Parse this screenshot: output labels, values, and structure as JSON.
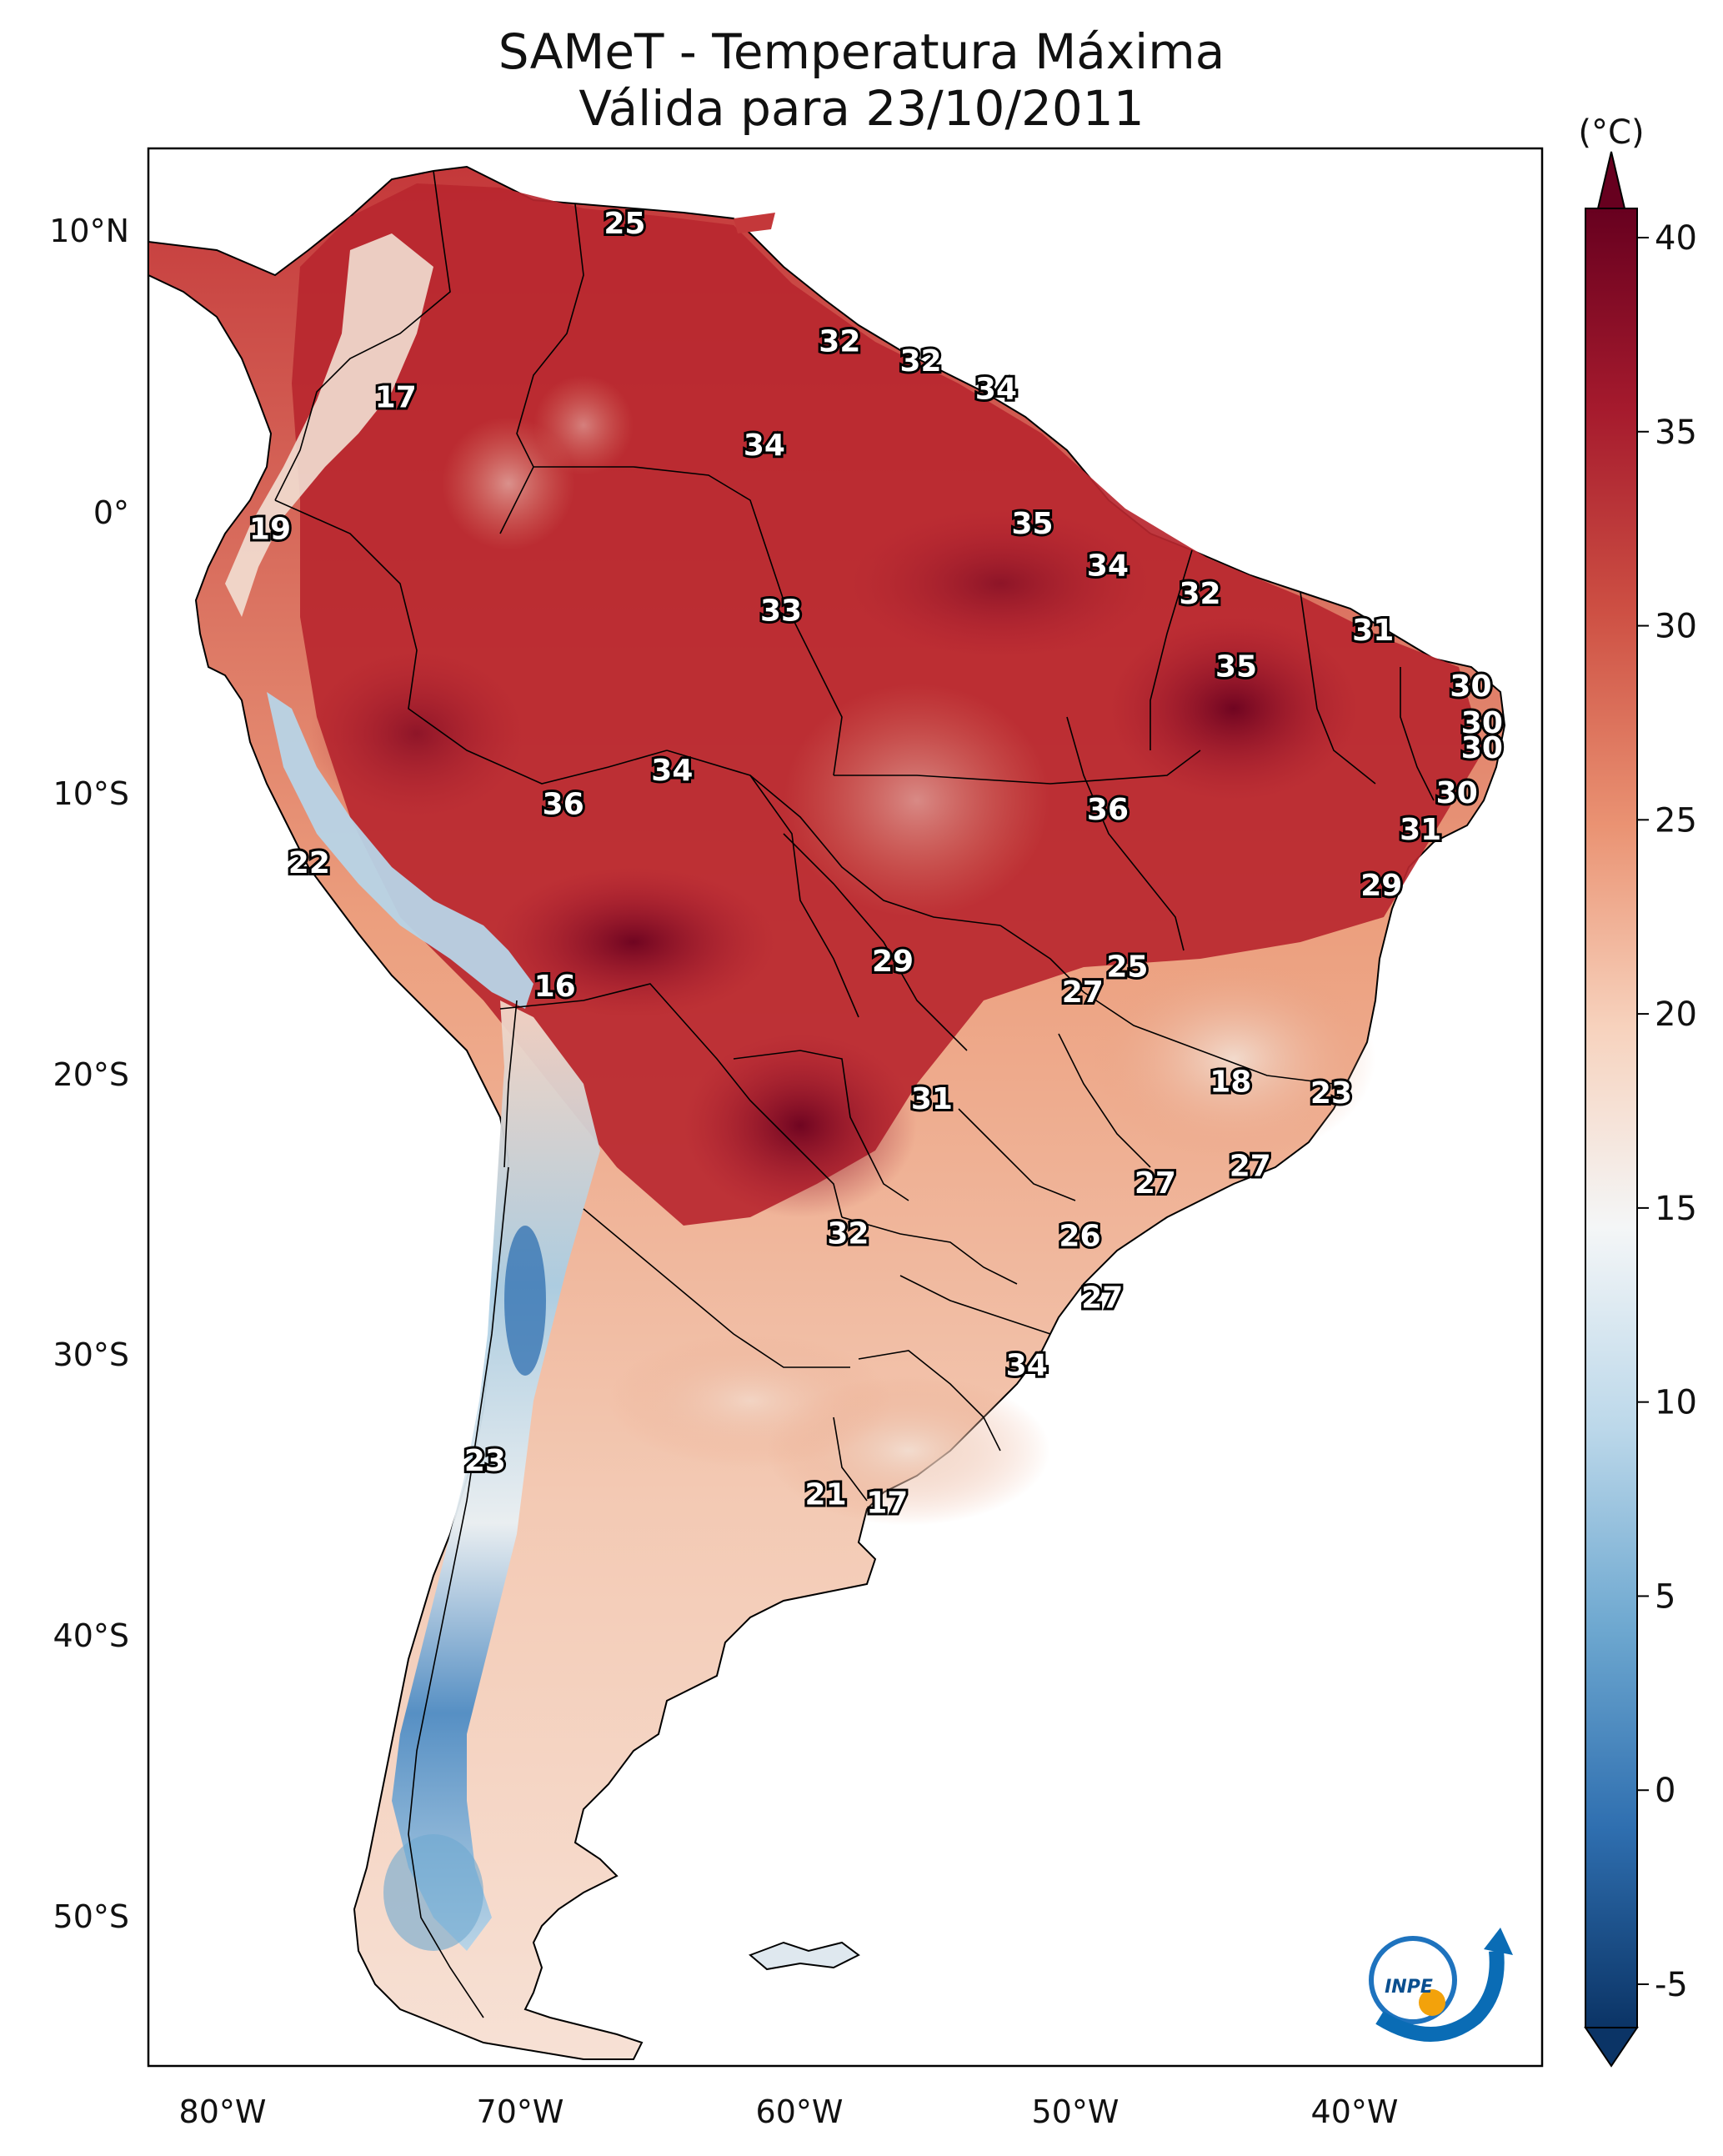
{
  "title": {
    "line1": "SAMeT - Temperatura Máxima",
    "line2": "Válida para 23/10/2011"
  },
  "axes": {
    "lon_labels": [
      "80°W",
      "70°W",
      "60°W",
      "50°W",
      "40°W"
    ],
    "lat_labels": [
      "10°N",
      "0°",
      "10°S",
      "20°S",
      "30°S",
      "40°S",
      "50°S"
    ]
  },
  "colorbar": {
    "unit": "(°C)",
    "ticks": [
      "40",
      "35",
      "30",
      "25",
      "20",
      "15",
      "10",
      "5",
      "0",
      "-5"
    ],
    "range": [
      -5,
      40
    ],
    "colors": [
      "#0b3466",
      "#2f6fb0",
      "#6ea8d0",
      "#bcd8ea",
      "#f4f6f7",
      "#f7d2bd",
      "#ea9373",
      "#cd4f43",
      "#a51a2d",
      "#67001f"
    ]
  },
  "logo": {
    "text": "INPE"
  },
  "station_values": [
    {
      "value": "25",
      "lon": -65.6,
      "lat": 10.7
    },
    {
      "value": "17",
      "lon": -73.8,
      "lat": 4.5
    },
    {
      "value": "32",
      "lon": -57.9,
      "lat": 6.5
    },
    {
      "value": "32",
      "lon": -55.0,
      "lat": 5.8
    },
    {
      "value": "34",
      "lon": -52.3,
      "lat": 4.8
    },
    {
      "value": "34",
      "lon": -60.6,
      "lat": 2.8
    },
    {
      "value": "19",
      "lon": -78.3,
      "lat": -0.2
    },
    {
      "value": "35",
      "lon": -51.0,
      "lat": 0.0
    },
    {
      "value": "34",
      "lon": -48.3,
      "lat": -1.5
    },
    {
      "value": "32",
      "lon": -45.0,
      "lat": -2.5
    },
    {
      "value": "33",
      "lon": -60.0,
      "lat": -3.1
    },
    {
      "value": "31",
      "lon": -38.8,
      "lat": -3.8
    },
    {
      "value": "35",
      "lon": -43.7,
      "lat": -5.1
    },
    {
      "value": "30",
      "lon": -35.3,
      "lat": -5.8
    },
    {
      "value": "30",
      "lon": -34.9,
      "lat": -7.1
    },
    {
      "value": "30",
      "lon": -34.9,
      "lat": -8.0
    },
    {
      "value": "34",
      "lon": -63.9,
      "lat": -8.8
    },
    {
      "value": "36",
      "lon": -67.8,
      "lat": -10.0
    },
    {
      "value": "36",
      "lon": -48.3,
      "lat": -10.2
    },
    {
      "value": "30",
      "lon": -35.8,
      "lat": -9.6
    },
    {
      "value": "31",
      "lon": -37.1,
      "lat": -10.9
    },
    {
      "value": "22",
      "lon": -76.9,
      "lat": -12.1
    },
    {
      "value": "29",
      "lon": -38.5,
      "lat": -12.9
    },
    {
      "value": "29",
      "lon": -56.0,
      "lat": -15.6
    },
    {
      "value": "25",
      "lon": -47.6,
      "lat": -15.8
    },
    {
      "value": "27",
      "lon": -49.2,
      "lat": -16.7
    },
    {
      "value": "16",
      "lon": -68.1,
      "lat": -16.5
    },
    {
      "value": "18",
      "lon": -43.9,
      "lat": -19.9
    },
    {
      "value": "31",
      "lon": -54.6,
      "lat": -20.5
    },
    {
      "value": "23",
      "lon": -40.3,
      "lat": -20.3
    },
    {
      "value": "27",
      "lon": -43.2,
      "lat": -22.9
    },
    {
      "value": "27",
      "lon": -46.6,
      "lat": -23.5
    },
    {
      "value": "32",
      "lon": -57.6,
      "lat": -25.3
    },
    {
      "value": "26",
      "lon": -49.3,
      "lat": -25.4
    },
    {
      "value": "27",
      "lon": -48.5,
      "lat": -27.6
    },
    {
      "value": "34",
      "lon": -51.2,
      "lat": -30.0
    },
    {
      "value": "23",
      "lon": -70.6,
      "lat": -33.4
    },
    {
      "value": "21",
      "lon": -58.4,
      "lat": -34.6
    },
    {
      "value": "17",
      "lon": -56.2,
      "lat": -34.9
    }
  ]
}
